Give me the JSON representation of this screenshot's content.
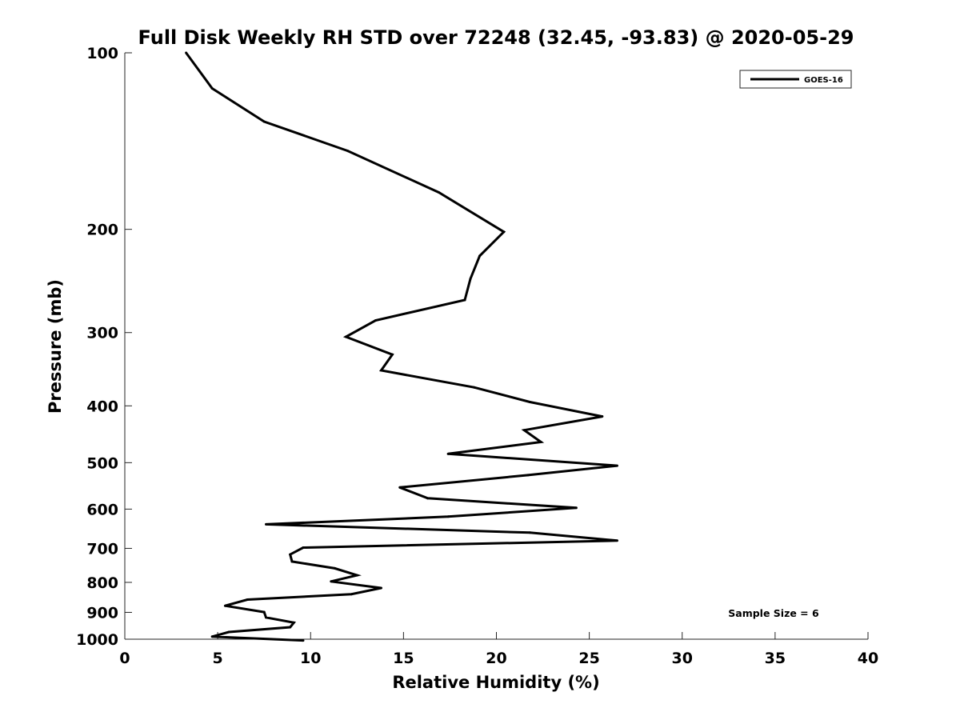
{
  "chart_data": {
    "type": "line",
    "title": "Full Disk Weekly RH STD over 72248 (32.45, -93.83) @ 2020-05-29",
    "xlabel": "Relative Humidity (%)",
    "ylabel": "Pressure (mb)",
    "xlim": [
      0,
      40
    ],
    "ylim": [
      100,
      1000
    ],
    "yscale": "log",
    "yreversed": true,
    "xticks": [
      0,
      5,
      10,
      15,
      20,
      25,
      30,
      35,
      40
    ],
    "xtick_labels": [
      "0",
      "5",
      "10",
      "15",
      "20",
      "25",
      "30",
      "35",
      "40"
    ],
    "yticks": [
      100,
      200,
      300,
      400,
      500,
      600,
      700,
      800,
      900,
      1000
    ],
    "ytick_labels": [
      "100",
      "200",
      "300",
      "400",
      "500",
      "600",
      "700",
      "800",
      "900",
      "1000"
    ],
    "grid": false,
    "legend_position": "top-right",
    "line_color": "#000000",
    "series": [
      {
        "name": "GOES-16",
        "x": [
          3.3,
          4.7,
          7.5,
          12.0,
          16.9,
          20.4,
          19.1,
          18.6,
          18.3,
          13.5,
          11.9,
          14.4,
          13.8,
          18.8,
          21.8,
          25.7,
          21.5,
          22.4,
          17.4,
          26.5,
          21.7,
          14.8,
          16.3,
          24.3,
          17.4,
          7.6,
          21.8,
          26.5,
          9.6,
          8.9,
          9.0,
          11.3,
          12.5,
          11.1,
          13.8,
          12.2,
          6.6,
          5.4,
          7.5,
          7.6,
          9.1,
          8.9,
          5.6,
          4.7,
          9.6
        ],
        "y": [
          100,
          115,
          131,
          147,
          173,
          202,
          222,
          243,
          264,
          286,
          305,
          327,
          348,
          372,
          394,
          417,
          440,
          461,
          483,
          506,
          525,
          551,
          575,
          597,
          618,
          637,
          658,
          679,
          698,
          717,
          737,
          757,
          778,
          797,
          818,
          838,
          856,
          877,
          899,
          918,
          937,
          954,
          972,
          990,
          1005
        ]
      }
    ],
    "annotations": [
      "Sample Size = 6"
    ]
  }
}
